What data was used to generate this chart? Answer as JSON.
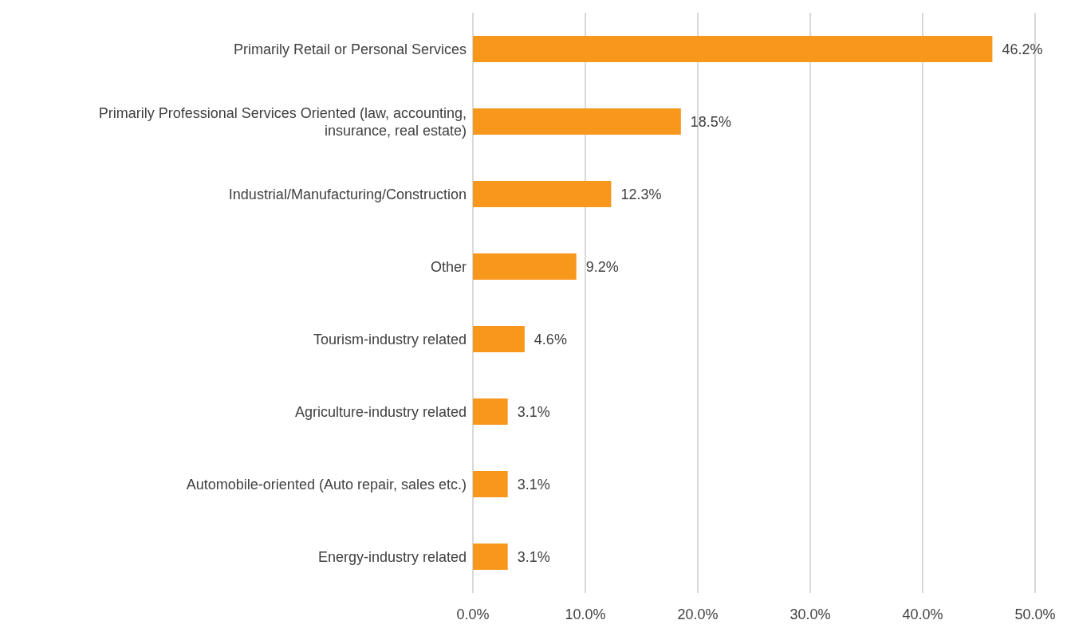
{
  "chart_data": {
    "type": "bar",
    "orientation": "horizontal",
    "categories": [
      "Primarily Retail or Personal Services",
      "Primarily Professional Services Oriented (law, accounting, insurance, real estate)",
      "Industrial/Manufacturing/Construction",
      "Other",
      "Tourism-industry related",
      "Agriculture-industry related",
      "Automobile-oriented (Auto repair, sales etc.)",
      "Energy-industry related"
    ],
    "values": [
      46.2,
      18.5,
      12.3,
      9.2,
      4.6,
      3.1,
      3.1,
      3.1
    ],
    "value_labels": [
      "46.2%",
      "18.5%",
      "12.3%",
      "9.2%",
      "4.6%",
      "3.1%",
      "3.1%",
      "3.1%"
    ],
    "color": "#f7981d",
    "xlim": [
      0,
      50
    ],
    "xticks": [
      {
        "value": 0,
        "label": "0.0%"
      },
      {
        "value": 10,
        "label": "10.0%"
      },
      {
        "value": 20,
        "label": "20.0%"
      },
      {
        "value": 30,
        "label": "30.0%"
      },
      {
        "value": 40,
        "label": "40.0%"
      },
      {
        "value": 50,
        "label": "50.0%"
      }
    ],
    "grid": "x",
    "legend": false
  }
}
